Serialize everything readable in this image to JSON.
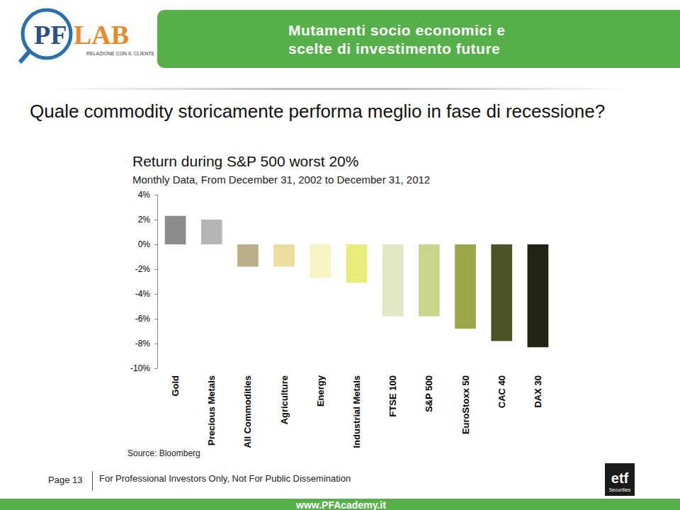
{
  "header": {
    "logo": [
      "PF",
      "LAB"
    ],
    "logo_tagline": "RELAZIONE CON IL CLIENTE",
    "banner": [
      "Mutamenti socio economici e",
      "scelte di investimento future"
    ],
    "question": "Quale commodity storicamente performa meglio in fase di recessione?"
  },
  "chart_data": {
    "type": "bar",
    "title": "Return during S&P 500 worst 20%",
    "subtitle": "Monthly Data, From December 31, 2002 to December 31, 2012",
    "source": "Source: Bloomberg",
    "categories": [
      "Gold",
      "Precious Metals",
      "All Commodities",
      "Agriculture",
      "Energy",
      "Industrial Metals",
      "FTSE 100",
      "S&P 500",
      "EuroStoxx 50",
      "CAC 40",
      "DAX 30"
    ],
    "values": [
      2.3,
      2.0,
      -1.8,
      -1.8,
      -2.7,
      -3.1,
      -5.8,
      -5.8,
      -6.8,
      -7.8,
      -8.3
    ],
    "colors": [
      "#8c8c8c",
      "#b5b5b5",
      "#bcae88",
      "#eedc9f",
      "#f6f5c2",
      "#e9ec7b",
      "#e1e7c3",
      "#cad58c",
      "#9ba648",
      "#4b5327",
      "#232514"
    ],
    "ylim": [
      -10,
      4
    ],
    "yticks": [
      {
        "value": -10,
        "label": "-10%"
      },
      {
        "value": -8,
        "label": "-8%"
      },
      {
        "value": -6,
        "label": "-6%"
      },
      {
        "value": -4,
        "label": "-4%"
      },
      {
        "value": -2,
        "label": "-2%"
      },
      {
        "value": 0,
        "label": "0%"
      },
      {
        "value": 2,
        "label": "2%"
      },
      {
        "value": 4,
        "label": "4%"
      }
    ],
    "grid": false
  },
  "footer": {
    "page": "Page 13",
    "disclaimer": "For Professional Investors Only, Not For Public Dissemination",
    "website": "www.PFAcademy.it",
    "brand": [
      "etf",
      "Securities"
    ]
  }
}
